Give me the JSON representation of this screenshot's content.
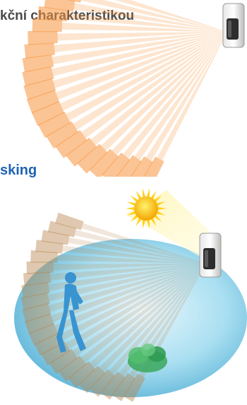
{
  "headings": {
    "top": "kční charakteristikou",
    "middle": "sking"
  },
  "colors": {
    "beam_orange": "#f7943c",
    "beam_light": "#fdc89a",
    "heading_blue": "#1e63b4",
    "heading_gray": "#4a4a4a",
    "ellipse_blue": "#8fd0ea",
    "sun_yellow": "#ffc21a",
    "person_blue": "#2f8fd0",
    "bush_green": "#39a85c",
    "beam_brown": "#b8844e"
  },
  "icons": {
    "sensor": "motion-sensor-icon",
    "sun": "sun-icon",
    "person": "walking-person-icon",
    "bush": "bush-icon"
  }
}
